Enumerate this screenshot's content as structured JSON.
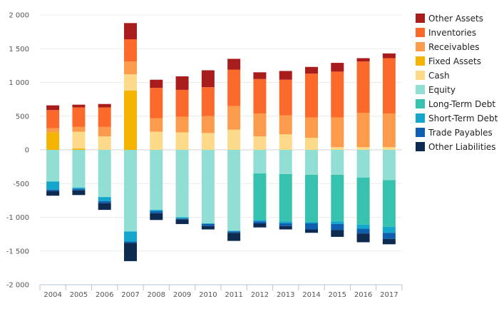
{
  "chart_data": {
    "type": "bar",
    "stacked": true,
    "categories": [
      "2004",
      "2005",
      "2006",
      "2007",
      "2008",
      "2009",
      "2010",
      "2011",
      "2012",
      "2013",
      "2014",
      "2015",
      "2016",
      "2017"
    ],
    "ylim": [
      -2000,
      2000
    ],
    "yticks": [
      2000,
      1500,
      1000,
      500,
      0,
      -500,
      -1000,
      -1500,
      -2000
    ],
    "ytick_labels": [
      "2 000",
      "1 500",
      "1 000",
      "500",
      "0",
      "-500",
      "-1 000",
      "-1 500",
      "-2 000"
    ],
    "grid": true,
    "legend_position": "right",
    "assets": [
      {
        "name": "Fixed Assets",
        "color": "#f5b400",
        "values": [
          260,
          20,
          0,
          880,
          0,
          0,
          0,
          0,
          0,
          0,
          0,
          0,
          0,
          0
        ]
      },
      {
        "name": "Cash",
        "color": "#fdd98a",
        "values": [
          0,
          250,
          200,
          240,
          270,
          260,
          250,
          300,
          200,
          230,
          180,
          40,
          40,
          40
        ]
      },
      {
        "name": "Receivables",
        "color": "#fb9b4b",
        "values": [
          60,
          70,
          140,
          190,
          200,
          230,
          250,
          350,
          340,
          280,
          300,
          440,
          510,
          500
        ]
      },
      {
        "name": "Inventories",
        "color": "#fb6a2b",
        "values": [
          270,
          290,
          290,
          330,
          450,
          400,
          430,
          540,
          510,
          530,
          650,
          680,
          760,
          820
        ]
      },
      {
        "name": "Other Assets",
        "color": "#a81c1c",
        "values": [
          70,
          40,
          50,
          240,
          120,
          200,
          250,
          160,
          100,
          130,
          100,
          130,
          50,
          70
        ]
      }
    ],
    "liabilities": [
      {
        "name": "Equity",
        "color": "#91ded4",
        "values": [
          -470,
          -560,
          -700,
          -1210,
          -890,
          -1000,
          -1090,
          -1200,
          -350,
          -360,
          -370,
          -370,
          -410,
          -450
        ]
      },
      {
        "name": "Long-Term Debt",
        "color": "#36c2ae",
        "values": [
          0,
          0,
          0,
          0,
          0,
          0,
          0,
          0,
          -690,
          -700,
          -700,
          -690,
          -700,
          -690
        ]
      },
      {
        "name": "Short-Term Debt",
        "color": "#14a6cc",
        "values": [
          -120,
          -20,
          -60,
          -150,
          -20,
          -20,
          -10,
          -10,
          -20,
          -30,
          -20,
          -40,
          -60,
          -90
        ]
      },
      {
        "name": "Trade Payables",
        "color": "#0f5fb0",
        "values": [
          -20,
          -20,
          -30,
          -20,
          -30,
          -10,
          -30,
          -20,
          -30,
          -40,
          -90,
          -90,
          -70,
          -90
        ]
      },
      {
        "name": "Other Liabilities",
        "color": "#0d2b50",
        "values": [
          -70,
          -70,
          -100,
          -270,
          -100,
          -70,
          -50,
          -120,
          -60,
          -50,
          -50,
          -100,
          -130,
          -80
        ]
      }
    ],
    "legend_order": [
      "Other Assets",
      "Inventories",
      "Receivables",
      "Fixed Assets",
      "Cash",
      "Equity",
      "Long-Term Debt",
      "Short-Term Debt",
      "Trade Payables",
      "Other Liabilities"
    ]
  }
}
